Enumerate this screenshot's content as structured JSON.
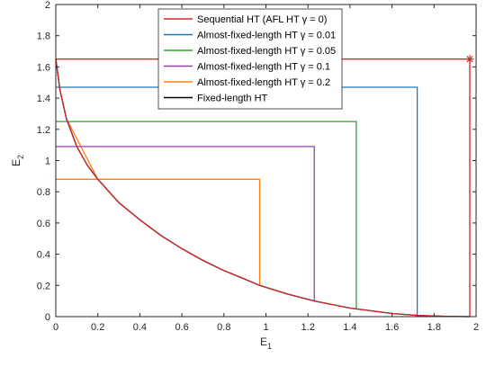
{
  "chart_data": {
    "type": "line",
    "title": "",
    "xlabel": "E",
    "xlabel_sub": "1",
    "ylabel": "E",
    "ylabel_sub": "2",
    "xlim": [
      0,
      2
    ],
    "ylim": [
      0,
      2
    ],
    "xticks": [
      "0",
      "0.2",
      "0.4",
      "0.6",
      "0.8",
      "1",
      "1.2",
      "1.4",
      "1.6",
      "1.8",
      "2"
    ],
    "yticks": [
      "0",
      "0.2",
      "0.4",
      "0.6",
      "0.8",
      "1",
      "1.2",
      "1.4",
      "1.6",
      "1.8",
      "2"
    ],
    "grid": false,
    "legend_position": "top-center",
    "fixed_length_curve": {
      "name": "Fixed-length HT",
      "color": "#000000",
      "x": [
        0,
        0.02,
        0.05,
        0.1,
        0.15,
        0.2,
        0.3,
        0.4,
        0.5,
        0.6,
        0.7,
        0.8,
        0.9,
        0.97,
        1.1,
        1.23,
        1.4,
        1.6,
        1.72,
        1.85,
        1.97
      ],
      "y": [
        1.65,
        1.45,
        1.27,
        1.09,
        0.97,
        0.88,
        0.73,
        0.62,
        0.52,
        0.435,
        0.36,
        0.295,
        0.24,
        0.2,
        0.145,
        0.1,
        0.055,
        0.02,
        0.008,
        0.002,
        0
      ]
    },
    "series": [
      {
        "name": "Sequential HT (AFL HT γ = 0)",
        "color": "#D62728",
        "corner": [
          1.97,
          1.65
        ],
        "marker": "*"
      },
      {
        "name": "Almost-fixed-length HT γ = 0.01",
        "color": "#1F77B4",
        "corner": [
          1.72,
          1.47
        ]
      },
      {
        "name": "Almost-fixed-length HT γ = 0.05",
        "color": "#2CA02C",
        "corner": [
          1.43,
          1.25
        ]
      },
      {
        "name": "Almost-fixed-length HT γ = 0.1",
        "color": "#9B3FB5",
        "corner": [
          1.23,
          1.09
        ]
      },
      {
        "name": "Almost-fixed-length HT γ = 0.2",
        "color": "#FF7F0E",
        "corner": [
          0.97,
          0.88
        ]
      }
    ],
    "legend": [
      {
        "label": "Sequential HT (AFL HT γ = 0)",
        "color": "#D62728"
      },
      {
        "label": "Almost-fixed-length HT γ = 0.01",
        "color": "#1F77B4"
      },
      {
        "label": "Almost-fixed-length HT γ = 0.05",
        "color": "#2CA02C"
      },
      {
        "label": "Almost-fixed-length HT γ = 0.1",
        "color": "#9B3FB5"
      },
      {
        "label": "Almost-fixed-length HT γ = 0.2",
        "color": "#FF7F0E"
      },
      {
        "label": "Fixed-length HT",
        "color": "#000000"
      }
    ]
  }
}
